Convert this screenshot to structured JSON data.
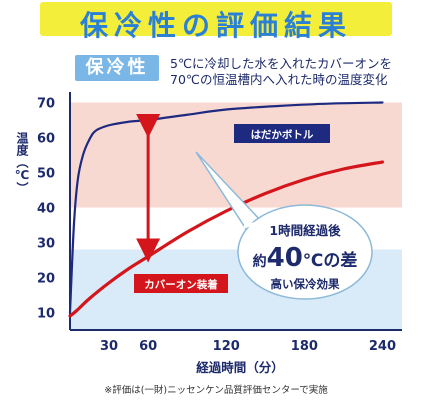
{
  "header": {
    "title": "保冷性の評価結果",
    "tag": "保冷性",
    "description_line1": "5℃に冷却した水を入れたカバーオンを",
    "description_line2": "70℃の恒温槽内へ入れた時の温度変化"
  },
  "footnote": "※評価は(一財)ニッセンケン品質評価センターで実施",
  "callout": {
    "line1": "1時間経過後",
    "prefix": "約",
    "number": "40",
    "unit": "℃の差",
    "line3": "高い保冷効果"
  },
  "colors": {
    "title_text": "#2a7fd6",
    "title_bg": "#f3ee3a",
    "tag_bg": "#7ab6e6",
    "pink_band": "#f8d9d2",
    "blue_band": "#d9ebf8",
    "navy_series": "#1d2a80",
    "red_series": "#d4161c",
    "axis": "#1d2a6b"
  },
  "chart_data": {
    "type": "line",
    "xlabel": "経過時間（分）",
    "ylabel": "温度（℃）",
    "xlim": [
      0,
      255
    ],
    "ylim": [
      5,
      73
    ],
    "xticks": [
      30,
      60,
      120,
      180,
      240
    ],
    "yticks": [
      10,
      20,
      30,
      40,
      50,
      60,
      70
    ],
    "bands": [
      {
        "from": 40,
        "to": 70,
        "color": "pink"
      },
      {
        "from": 5,
        "to": 28,
        "color": "light-blue"
      }
    ],
    "series": [
      {
        "name": "はだかボトル",
        "color": "#1d2a80",
        "points": [
          [
            0,
            10
          ],
          [
            3,
            35
          ],
          [
            6,
            48
          ],
          [
            10,
            55
          ],
          [
            15,
            59.5
          ],
          [
            20,
            62
          ],
          [
            30,
            63.5
          ],
          [
            45,
            64.5
          ],
          [
            60,
            65
          ],
          [
            90,
            66.5
          ],
          [
            120,
            68
          ],
          [
            160,
            69
          ],
          [
            200,
            69.7
          ],
          [
            240,
            70
          ]
        ]
      },
      {
        "name": "カバーオン装着",
        "color": "#d4161c",
        "points": [
          [
            0,
            9
          ],
          [
            5,
            10.5
          ],
          [
            15,
            14
          ],
          [
            30,
            18.5
          ],
          [
            45,
            22.5
          ],
          [
            60,
            26
          ],
          [
            90,
            33
          ],
          [
            120,
            39
          ],
          [
            150,
            44
          ],
          [
            180,
            48
          ],
          [
            210,
            51
          ],
          [
            240,
            53
          ]
        ]
      }
    ],
    "annotation": {
      "x": 60,
      "from": 26,
      "to": 65,
      "text": "1時間経過後 約40℃の差"
    }
  }
}
